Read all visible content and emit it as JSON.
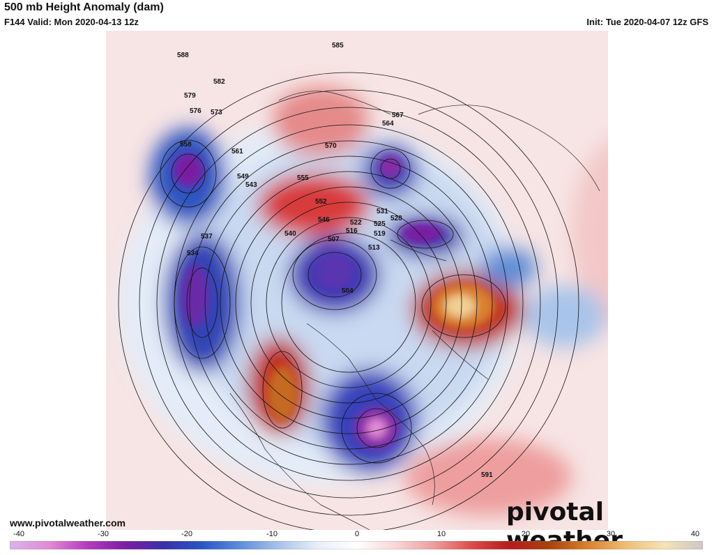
{
  "header": {
    "title": "500 mb Height Anomaly (dam)",
    "valid": "F144 Valid: Mon 2020-04-13 12z",
    "init": "Init: Tue 2020-04-07 12z GFS"
  },
  "footer": {
    "website": "www.pivotalweather.com",
    "logo_text": "pivotal weather"
  },
  "colorbar": {
    "ticks": [
      "-40",
      "-30",
      "-20",
      "-10",
      "0",
      "10",
      "20",
      "30",
      "40"
    ],
    "range": [
      -40,
      40
    ],
    "stops": [
      "#d8b4e8",
      "#e38bd6",
      "#b63bbf",
      "#7a1fa3",
      "#3b2fa8",
      "#2a56c4",
      "#5f8fd8",
      "#a9c4ea",
      "#e8eef8",
      "#ffffff",
      "#f7d7d7",
      "#ee9f9f",
      "#dd4a4a",
      "#b51c1c",
      "#a8410e",
      "#d9802e",
      "#eebe77",
      "#f4e2b8",
      "#cfc6c6"
    ]
  },
  "contour_labels": [
    "588",
    "585",
    "582",
    "579",
    "576",
    "573",
    "570",
    "567",
    "564",
    "561",
    "558",
    "555",
    "552",
    "549",
    "546",
    "543",
    "540",
    "537",
    "534",
    "531",
    "528",
    "525",
    "522",
    "519",
    "516",
    "513",
    "507",
    "504",
    "591"
  ]
}
